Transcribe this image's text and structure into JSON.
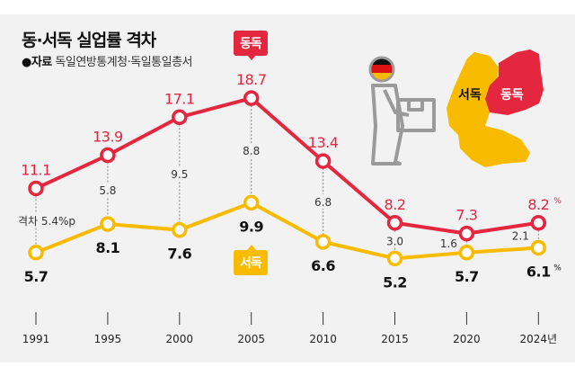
{
  "title": "동·서독 실업률 격차",
  "source_label": "●자료",
  "source_text": "독일연방통계청·독일통일총서",
  "map_labels": {
    "west": "서독",
    "east": "동독"
  },
  "colors": {
    "east": "#e4263f",
    "west": "#f9bb00",
    "gap_line": "#888888"
  },
  "icons": [
    "worker-with-box-icon",
    "german-flag-icon",
    "germany-map"
  ],
  "chart_data": {
    "type": "line",
    "categories": [
      "1991",
      "1995",
      "2000",
      "2005",
      "2010",
      "2015",
      "2020",
      "2024년"
    ],
    "series": [
      {
        "name": "동독",
        "values": [
          11.1,
          13.9,
          17.1,
          18.7,
          13.4,
          8.2,
          7.3,
          8.2
        ],
        "labels": [
          "11.1",
          "13.9",
          "17.1",
          "18.7",
          "13.4",
          "8.2",
          "7.3",
          "8.2"
        ],
        "color": "#e4263f"
      },
      {
        "name": "서독",
        "values": [
          5.7,
          8.1,
          7.6,
          9.9,
          6.6,
          5.2,
          5.7,
          6.1
        ],
        "labels": [
          "5.7",
          "8.1",
          "7.6",
          "9.9",
          "6.6",
          "5.2",
          "5.7",
          "6.1"
        ],
        "color": "#f9bb00"
      }
    ],
    "gap_labels": [
      "격차 5.4%p",
      "5.8",
      "9.5",
      "8.8",
      "6.8",
      "3.0",
      "1.6",
      "2.1"
    ],
    "unit": "%",
    "grid": false
  }
}
